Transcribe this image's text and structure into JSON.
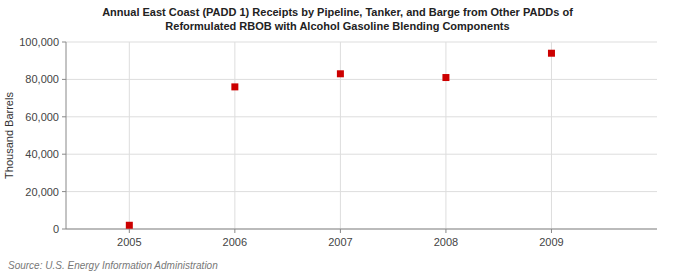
{
  "chart_data": {
    "type": "scatter",
    "title": "Annual East Coast (PADD 1) Receipts by Pipeline, Tanker, and Barge from Other PADDs of\nReformulated RBOB with Alcohol Gasoline Blending Components",
    "y_label": "Thousand Barrels",
    "annotations": [
      "Source: U.S. Energy Information Administration"
    ],
    "x": [
      2005,
      2006,
      2007,
      2008,
      2009
    ],
    "values": [
      2000,
      76000,
      83000,
      81000,
      94000
    ],
    "color": "#cc0000",
    "marker": "square",
    "xlim": [
      2004.4,
      2010.0
    ],
    "xticks": [
      2005,
      2006,
      2007,
      2008,
      2009
    ],
    "ylim": [
      0,
      100000
    ],
    "yticks": [
      0,
      {
        "value": 20000,
        "label": "20,000"
      },
      {
        "value": 40000,
        "label": "40,000"
      },
      {
        "value": 60000,
        "label": "60,000"
      },
      {
        "value": 80000,
        "label": "80,000"
      },
      {
        "value": 100000,
        "label": "100,000"
      }
    ],
    "grid": true
  }
}
